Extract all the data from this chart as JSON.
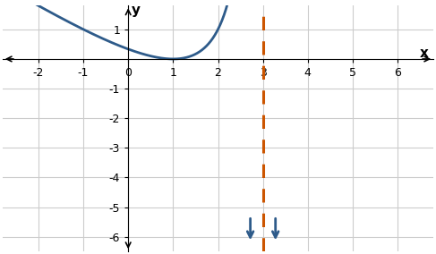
{
  "title": "",
  "xlabel": "x",
  "ylabel": "y",
  "xlim": [
    -2.8,
    6.8
  ],
  "ylim": [
    -6.5,
    1.8
  ],
  "xticks": [
    -2,
    -1,
    0,
    1,
    2,
    3,
    4,
    5,
    6
  ],
  "yticks": [
    -6,
    -5,
    -4,
    -3,
    -2,
    -1,
    1
  ],
  "asymptote_x": 3.0,
  "asymptote_color": "#CC5500",
  "curve_color": "#2E5B8A",
  "curve_linewidth": 2.0,
  "background_color": "#ffffff",
  "grid_color": "#cccccc"
}
